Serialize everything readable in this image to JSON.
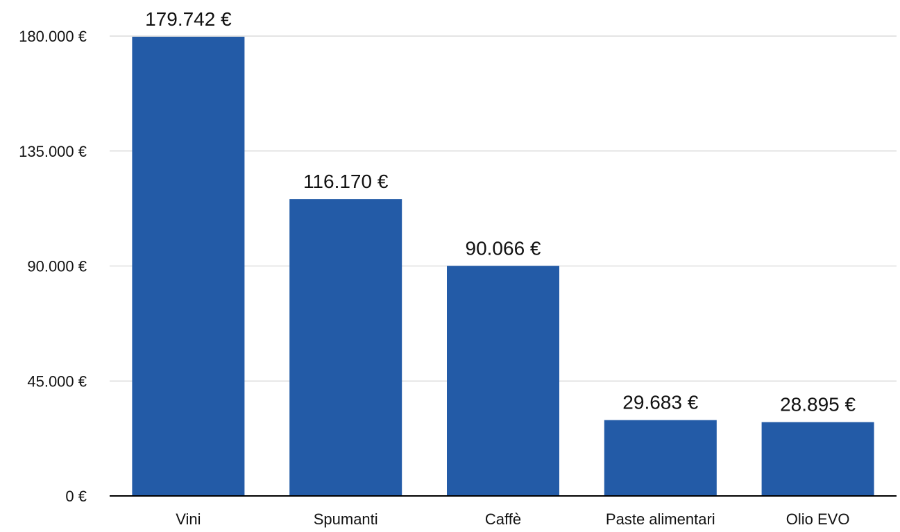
{
  "chart_data": {
    "type": "bar",
    "title": "",
    "xlabel": "",
    "ylabel": "",
    "categories": [
      "Vini",
      "Spumanti",
      "Caffè",
      "Paste alimentari",
      "Olio EVO"
    ],
    "values": [
      179742,
      116170,
      90066,
      29683,
      28895
    ],
    "value_labels": [
      "179.742 €",
      "116.170 €",
      "90.066 €",
      "29.683 €",
      "28.895 €"
    ],
    "ylim": [
      0,
      180000
    ],
    "yticks": [
      0,
      45000,
      90000,
      135000,
      180000
    ],
    "ytick_labels": [
      "0 €",
      "45.000 €",
      "90.000 €",
      "135.000 €",
      "180.000 €"
    ],
    "grid": true,
    "legend": "none",
    "colors": {
      "bar": "#235ba7",
      "grid": "#c8c8c8",
      "axis": "#000000"
    }
  }
}
